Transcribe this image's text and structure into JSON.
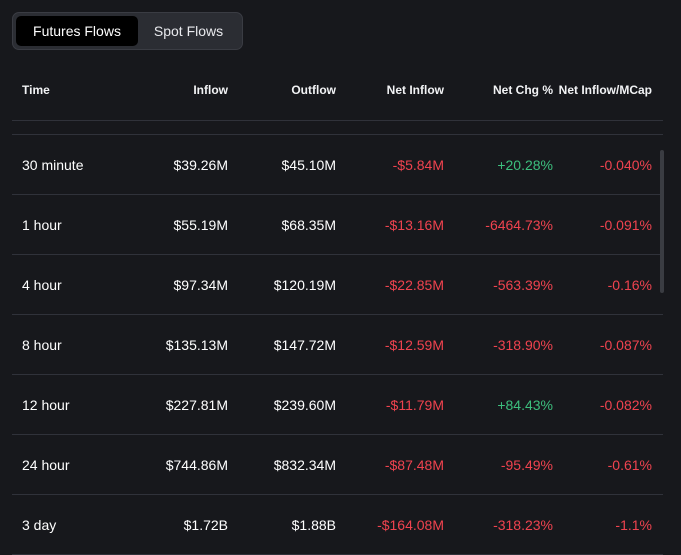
{
  "tabs": [
    {
      "label": "Futures Flows",
      "active": true
    },
    {
      "label": "Spot Flows",
      "active": false
    }
  ],
  "table": {
    "columns": [
      "Time",
      "Inflow",
      "Outflow",
      "Net Inflow",
      "Net Chg %",
      "Net Inflow/MCap"
    ],
    "rows": [
      {
        "time": "30 minute",
        "inflow": "$39.26M",
        "outflow": "$45.10M",
        "net_inflow": "-$5.84M",
        "net_chg": "+20.28%",
        "net_mcap": "-0.040%",
        "net_chg_sign": "positive"
      },
      {
        "time": "1 hour",
        "inflow": "$55.19M",
        "outflow": "$68.35M",
        "net_inflow": "-$13.16M",
        "net_chg": "-6464.73%",
        "net_mcap": "-0.091%",
        "net_chg_sign": "negative"
      },
      {
        "time": "4 hour",
        "inflow": "$97.34M",
        "outflow": "$120.19M",
        "net_inflow": "-$22.85M",
        "net_chg": "-563.39%",
        "net_mcap": "-0.16%",
        "net_chg_sign": "negative"
      },
      {
        "time": "8 hour",
        "inflow": "$135.13M",
        "outflow": "$147.72M",
        "net_inflow": "-$12.59M",
        "net_chg": "-318.90%",
        "net_mcap": "-0.087%",
        "net_chg_sign": "negative"
      },
      {
        "time": "12 hour",
        "inflow": "$227.81M",
        "outflow": "$239.60M",
        "net_inflow": "-$11.79M",
        "net_chg": "+84.43%",
        "net_mcap": "-0.082%",
        "net_chg_sign": "positive"
      },
      {
        "time": "24 hour",
        "inflow": "$744.86M",
        "outflow": "$832.34M",
        "net_inflow": "-$87.48M",
        "net_chg": "-95.49%",
        "net_mcap": "-0.61%",
        "net_chg_sign": "negative"
      },
      {
        "time": "3 day",
        "inflow": "$1.72B",
        "outflow": "$1.88B",
        "net_inflow": "-$164.08M",
        "net_chg": "-318.23%",
        "net_mcap": "-1.1%",
        "net_chg_sign": "negative"
      }
    ]
  },
  "colors": {
    "background": "#17181c",
    "negative": "#f0434f",
    "positive": "#3cbf7d",
    "active_tab": "#000000",
    "tab_bar": "#2b2d33"
  }
}
